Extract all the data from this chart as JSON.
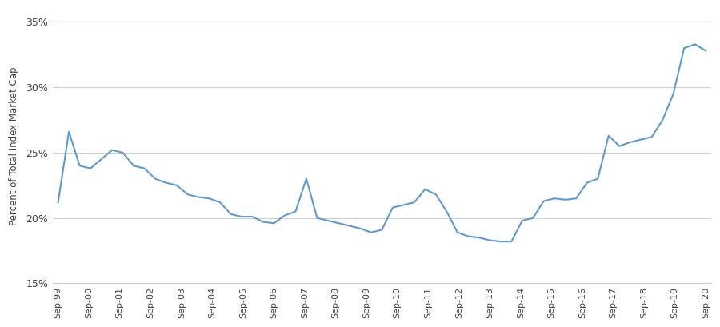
{
  "ylabel": "Percent of Total Index Market Cap",
  "xlabel": "",
  "background_color": "#ffffff",
  "line_color": "#5b9bd5",
  "line_width": 1.5,
  "ylim": [
    15,
    36
  ],
  "yticks": [
    15,
    20,
    25,
    30,
    35
  ],
  "x_labels": [
    "Sep-99",
    "Sep-00",
    "Sep-01",
    "Sep-02",
    "Sep-03",
    "Sep-04",
    "Sep-05",
    "Sep-06",
    "Sep-07",
    "Sep-08",
    "Sep-09",
    "Sep-10",
    "Sep-11",
    "Sep-12",
    "Sep-13",
    "Sep-14",
    "Sep-15",
    "Sep-16",
    "Sep-17",
    "Sep-18",
    "Sep-19",
    "Sep-20"
  ],
  "data_y": [
    21.2,
    26.6,
    24.0,
    23.8,
    24.5,
    25.2,
    25.0,
    24.0,
    23.8,
    23.0,
    22.7,
    22.5,
    21.8,
    21.6,
    21.5,
    21.2,
    20.3,
    20.1,
    20.1,
    19.7,
    19.6,
    20.2,
    20.5,
    23.0,
    20.0,
    19.8,
    19.6,
    19.4,
    19.2,
    18.9,
    19.1,
    20.8,
    21.0,
    21.2,
    22.2,
    21.8,
    20.5,
    18.9,
    18.6,
    18.5,
    18.3,
    18.2,
    18.2,
    19.8,
    20.0,
    21.3,
    21.5,
    21.4,
    21.5,
    22.7,
    23.0,
    26.3,
    25.5,
    25.8,
    26.0,
    26.2,
    27.5,
    29.5,
    33.0,
    33.3,
    32.8
  ]
}
